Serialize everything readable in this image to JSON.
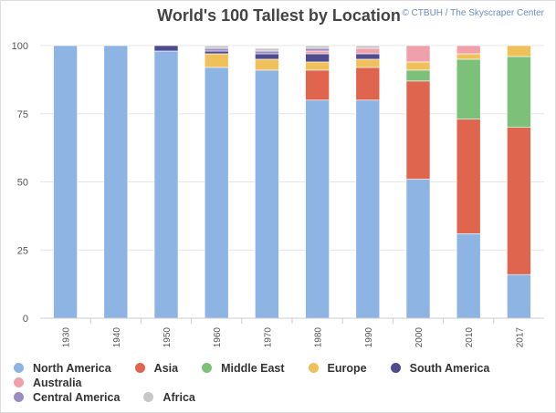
{
  "chart_data": {
    "type": "bar",
    "stacked": true,
    "title": "World's 100 Tallest by Location",
    "credit": "© CTBUH / The Skyscraper Center",
    "categories": [
      "1930",
      "1940",
      "1950",
      "1960",
      "1970",
      "1980",
      "1990",
      "2000",
      "2010",
      "2017"
    ],
    "ylim": [
      0,
      100
    ],
    "yticks": [
      0,
      25,
      50,
      75,
      100
    ],
    "grid": true,
    "legend_position": "bottom",
    "series": [
      {
        "name": "North America",
        "color": "#8eb4e3",
        "values": [
          100,
          100,
          98,
          92,
          91,
          80,
          80,
          51,
          31,
          16
        ]
      },
      {
        "name": "Asia",
        "color": "#e0654f",
        "values": [
          0,
          0,
          0,
          0,
          0,
          11,
          12,
          36,
          42,
          54
        ]
      },
      {
        "name": "Middle East",
        "color": "#7cc07a",
        "values": [
          0,
          0,
          0,
          0,
          0,
          0,
          0,
          4,
          22,
          26
        ]
      },
      {
        "name": "Europe",
        "color": "#f0c05a",
        "values": [
          0,
          0,
          0,
          5,
          4,
          3,
          3,
          3,
          2,
          4
        ]
      },
      {
        "name": "South America",
        "color": "#4e4b8f",
        "values": [
          0,
          0,
          2,
          1,
          2,
          3,
          2,
          0,
          0,
          0
        ]
      },
      {
        "name": "Australia",
        "color": "#f0a0aa",
        "values": [
          0,
          0,
          0,
          0,
          0,
          1,
          2,
          6,
          3,
          0
        ]
      },
      {
        "name": "Central America",
        "color": "#9b8cc0",
        "values": [
          0,
          0,
          0,
          1,
          1,
          1,
          0,
          0,
          0,
          0
        ]
      },
      {
        "name": "Africa",
        "color": "#c8c8c8",
        "values": [
          0,
          0,
          0,
          1,
          1,
          1,
          1,
          0,
          0,
          0
        ]
      }
    ]
  }
}
